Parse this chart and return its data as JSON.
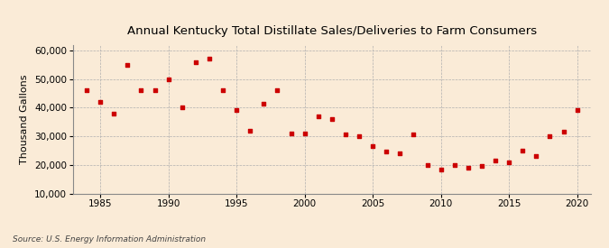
{
  "title": "Annual Kentucky Total Distillate Sales/Deliveries to Farm Consumers",
  "ylabel": "Thousand Gallons",
  "source": "Source: U.S. Energy Information Administration",
  "background_color": "#faebd7",
  "marker_color": "#cc0000",
  "xlim": [
    1983,
    2021
  ],
  "ylim": [
    10000,
    62000
  ],
  "yticks": [
    10000,
    20000,
    30000,
    40000,
    50000,
    60000
  ],
  "xticks": [
    1985,
    1990,
    1995,
    2000,
    2005,
    2010,
    2015,
    2020
  ],
  "data": {
    "1984": 46000,
    "1985": 42000,
    "1986": 38000,
    "1987": 55000,
    "1988": 46000,
    "1989": 46000,
    "1990": 50000,
    "1991": 40000,
    "1992": 56000,
    "1993": 57000,
    "1994": 46000,
    "1995": 39000,
    "1996": 32000,
    "1997": 41500,
    "1998": 46000,
    "1999": 31000,
    "2000": 31000,
    "2001": 37000,
    "2002": 36000,
    "2003": 30500,
    "2004": 30000,
    "2005": 26500,
    "2006": 24500,
    "2007": 24000,
    "2008": 30500,
    "2009": 20000,
    "2010": 18500,
    "2011": 20000,
    "2012": 19000,
    "2013": 19500,
    "2014": 21500,
    "2015": 21000,
    "2016": 25000,
    "2017": 23000,
    "2018": 30000,
    "2019": 31500,
    "2020": 39000
  }
}
